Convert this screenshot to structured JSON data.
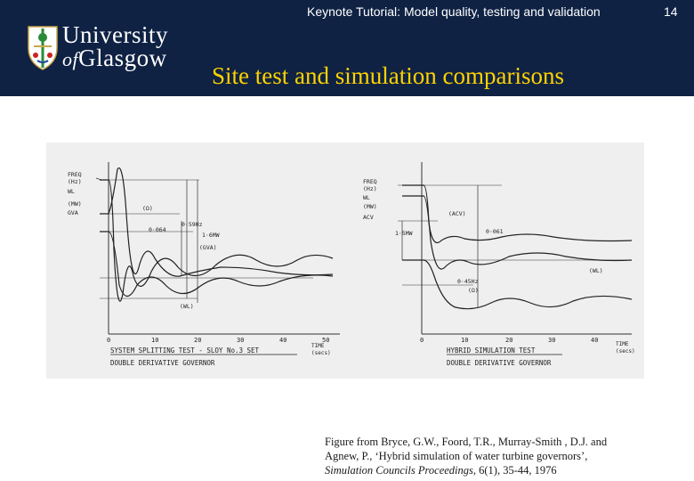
{
  "header": {
    "title": "Keynote Tutorial: Model quality, testing and validation",
    "page_number": "14",
    "university_line1": "University",
    "university_of": "of",
    "university_line2": "Glasgow"
  },
  "slide": {
    "title": "Site test and simulation comparisons"
  },
  "figure": {
    "left_plot": {
      "y_labels": [
        "FREQ",
        "(Hz)",
        "WL",
        "(MW)",
        "GVA"
      ],
      "annotations": [
        "(Ω)",
        "0·064",
        "0·59Hz",
        "1·6MW",
        "(GVA)",
        "(WL)"
      ],
      "x_ticks": [
        "0",
        "10",
        "20",
        "30",
        "40",
        "50"
      ],
      "x_unit": [
        "TIME",
        "(secs)"
      ],
      "caption_line1": "SYSTEM SPLITTING TEST - SLOY No.3 SET",
      "caption_line2": "DOUBLE DERIVATIVE GOVERNOR"
    },
    "right_plot": {
      "y_labels": [
        "FREQ",
        "(Hz)",
        "WL",
        "(MW)",
        "ACV"
      ],
      "annotations": [
        "(ACV)",
        "0·061",
        "1·5MW",
        "(WL)",
        "0·45Hz",
        "(Ω)"
      ],
      "x_ticks": [
        "0",
        "10",
        "20",
        "30",
        "40"
      ],
      "x_unit": [
        "TIME",
        "(secs)"
      ],
      "caption_line1": "HYBRID SIMULATION TEST",
      "caption_line2": "DOUBLE DERIVATIVE GOVERNOR"
    }
  },
  "caption": {
    "line1": "Figure from Bryce, G.W., Foord, T.R., Murray-Smith , D.J. and",
    "line2": "Agnew, P., ‘Hybrid simulation of  water turbine governors’,",
    "line3_italic": "Simulation Councils Proceedings,",
    "line3_rest": " 6(1), 35-44, 1976"
  },
  "colors": {
    "header_bg": "#0f2244",
    "title_yellow": "#ffd200",
    "text_white": "#ffffff"
  }
}
